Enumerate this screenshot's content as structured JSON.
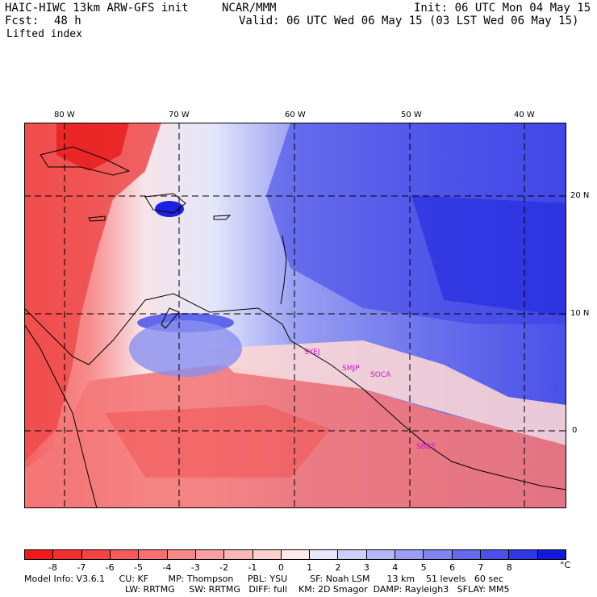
{
  "header": {
    "model": "HAIC-HIWC 13km ARW-GFS init",
    "org": "NCAR/MMM",
    "init": "Init: 06 UTC Mon 04 May 15",
    "fcst_label": "Fcst:",
    "fcst_value": "48 h",
    "valid": "Valid: 06 UTC Wed 06 May 15 (03 LST Wed 06 May 15)",
    "field": "Lifted index"
  },
  "map": {
    "lon_labels": [
      "80 W",
      "70 W",
      "60 W",
      "50 W",
      "40 W"
    ],
    "lat_labels": [
      "20 N",
      "10 N",
      "0"
    ],
    "stations": [
      "SYEJ",
      "SMJP",
      "SOCA",
      "SBBE"
    ]
  },
  "colorbar": {
    "ticks": [
      "-8",
      "-7",
      "-6",
      "-5",
      "-4",
      "-3",
      "-2",
      "-1",
      "0",
      "1",
      "2",
      "3",
      "4",
      "5",
      "6",
      "7",
      "8"
    ],
    "unit": "°C",
    "colors": [
      "#f01818",
      "#f22e2e",
      "#f44444",
      "#f65a5a",
      "#f77171",
      "#f98888",
      "#fa9f9f",
      "#fbb6b6",
      "#fdd0d0",
      "#fdeaea",
      "#e8e8fb",
      "#cfd0f8",
      "#b4b7f5",
      "#9a9df2",
      "#7f84ef",
      "#646aec",
      "#4a50e8",
      "#3036e4",
      "#1219dd"
    ]
  },
  "footer": {
    "line1": "Model Info: V3.6.1     CU: KF       MP: Thompson     PBL: YSU        SF: Noah LSM      13 km    51 levels   60 sec",
    "line2": "LW: RRTMG     SW: RRTMG   DIFF: full    KM: 2D Smagor  DAMP: Rayleigh3   SFLAY: MM5"
  }
}
